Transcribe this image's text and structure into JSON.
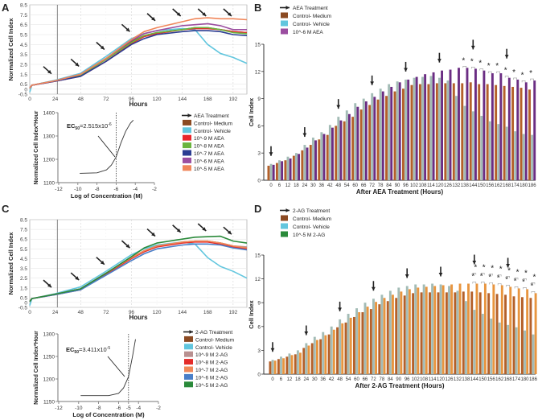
{
  "panel_labels": {
    "A": "A",
    "B": "B",
    "C": "C",
    "D": "D"
  },
  "chart_data": [
    {
      "id": "A",
      "type": "line",
      "xlabel": "Hours",
      "ylabel": "Normalized Cell Index",
      "xlim": [
        0,
        205
      ],
      "ylim": [
        -0.5,
        8.5
      ],
      "xticks": [
        "0",
        "24",
        "48",
        "72",
        "96",
        "120",
        "144",
        "168",
        "192"
      ],
      "yticks": [
        "-0.5",
        "0",
        "0.5",
        "1.5",
        "2.5",
        "3.5",
        "4.5",
        "5.5",
        "6.5",
        "7.5",
        "8.5"
      ],
      "grid": true,
      "treatment_hours": [
        22,
        48,
        72,
        96,
        120,
        144,
        168,
        192
      ],
      "x": [
        0,
        2,
        24,
        48,
        72,
        96,
        108,
        120,
        144,
        156,
        168,
        180,
        192,
        205
      ],
      "series": [
        {
          "name": "Control- Medium",
          "color": "#8b4a22",
          "values": [
            0.1,
            0.4,
            0.85,
            1.4,
            3.0,
            4.8,
            5.4,
            5.7,
            6.0,
            6.2,
            6.2,
            6.0,
            5.8,
            5.7
          ]
        },
        {
          "name": "Control- Vehicle",
          "color": "#62c6de",
          "values": [
            -0.3,
            0.4,
            0.9,
            1.6,
            3.3,
            5.1,
            5.6,
            5.9,
            6.1,
            6.0,
            4.5,
            3.6,
            3.2,
            2.6
          ]
        },
        {
          "name": "10^-9 M AEA",
          "color": "#e8262b",
          "values": [
            0.1,
            0.4,
            0.8,
            1.3,
            2.8,
            4.6,
            5.3,
            5.6,
            6.0,
            6.1,
            6.1,
            6.0,
            5.8,
            5.7
          ]
        },
        {
          "name": "10^-8 M AEA",
          "color": "#6ab43e",
          "values": [
            0.1,
            0.4,
            0.85,
            1.4,
            3.0,
            4.7,
            5.4,
            5.7,
            6.0,
            6.2,
            6.2,
            6.0,
            5.7,
            5.6
          ]
        },
        {
          "name": "10^-7 M AEA",
          "color": "#2b3d92",
          "values": [
            0.1,
            0.4,
            0.8,
            1.3,
            2.8,
            4.5,
            5.1,
            5.5,
            5.8,
            5.9,
            5.9,
            5.8,
            5.5,
            5.4
          ]
        },
        {
          "name": "10^-6 M AEA",
          "color": "#9b4ea0",
          "values": [
            0.1,
            0.4,
            0.85,
            1.5,
            3.1,
            4.9,
            5.6,
            5.9,
            6.4,
            6.5,
            6.6,
            6.4,
            6.0,
            6.0
          ]
        },
        {
          "name": "10^-5 M AEA",
          "color": "#f0865a",
          "values": [
            0.1,
            0.4,
            0.85,
            1.5,
            3.1,
            5.0,
            5.8,
            6.2,
            6.8,
            7.1,
            7.2,
            7.1,
            7.1,
            7.0
          ]
        }
      ],
      "legend": {
        "treatment_label": "AEA Treatment",
        "placement": "right of inset"
      }
    },
    {
      "id": "A-inset",
      "type": "line",
      "xlabel": "Log of Concentration (M)",
      "ylabel": "Normalized Cell Index*Hour",
      "xlim": [
        -12,
        -2
      ],
      "ylim": [
        1100,
        1400
      ],
      "xticks": [
        "-12",
        "-10",
        "-8",
        "-6",
        "-4",
        "-2"
      ],
      "yticks": [
        "1100",
        "1200",
        "1300",
        "1400"
      ],
      "annotation": {
        "ec_label": "EC",
        "ec_sub": "50",
        "ec_value": "=2.515x10",
        "ec_exp": "-6"
      },
      "reference_x": -6,
      "points": [
        [
          -9.8,
          1140
        ],
        [
          -8,
          1142
        ],
        [
          -7,
          1155
        ],
        [
          -6.5,
          1175
        ],
        [
          -6,
          1210
        ],
        [
          -5.5,
          1270
        ],
        [
          -5,
          1320
        ],
        [
          -4.5,
          1355
        ],
        [
          -4.2,
          1368
        ]
      ]
    },
    {
      "id": "B",
      "type": "bar",
      "xlabel": "After AEA Treatment (Hours)",
      "ylabel": "Cell Index",
      "ylim": [
        0,
        15
      ],
      "yticks": [
        "0",
        "3",
        "6",
        "9",
        "12",
        "15"
      ],
      "categories": [
        "0",
        "6",
        "12",
        "18",
        "24",
        "30",
        "36",
        "42",
        "48",
        "54",
        "60",
        "66",
        "72",
        "78",
        "84",
        "90",
        "96",
        "102",
        "108",
        "114",
        "120",
        "126",
        "132",
        "138",
        "144",
        "150",
        "156",
        "162",
        "168",
        "174",
        "180",
        "186"
      ],
      "treatment_label": "AEA Treatment",
      "treatment_hours": [
        0,
        24,
        48,
        72,
        96,
        120,
        144,
        168
      ],
      "significance": [
        {
          "at": 138,
          "count": 1
        },
        {
          "at": 144,
          "count": 1
        },
        {
          "at": 150,
          "count": 1
        },
        {
          "at": 156,
          "count": 1
        },
        {
          "at": 162,
          "count": 1
        },
        {
          "at": 168,
          "count": 1
        },
        {
          "at": 174,
          "count": 1
        },
        {
          "at": 180,
          "count": 1
        },
        {
          "at": 186,
          "count": 1
        }
      ],
      "series": [
        {
          "name": "Control- Medium",
          "color": "#b4602a",
          "legend_color": "#8b4a22",
          "values": [
            1.6,
            1.9,
            2.2,
            2.7,
            3.3,
            3.9,
            4.5,
            5.0,
            6.0,
            6.5,
            7.0,
            7.8,
            8.3,
            8.9,
            9.3,
            9.8,
            10.1,
            10.5,
            10.6,
            10.6,
            10.7,
            10.7,
            10.7,
            10.7,
            10.8,
            10.6,
            10.6,
            10.5,
            10.4,
            10.3,
            10.2,
            10.0
          ]
        },
        {
          "name": "Control- Vehicle",
          "color": "#a3bcb6",
          "legend_color": "#62c6de",
          "values": [
            1.8,
            2.2,
            2.6,
            3.0,
            3.9,
            4.7,
            5.3,
            6.1,
            7.0,
            7.7,
            8.5,
            9.0,
            9.6,
            10.1,
            10.6,
            10.9,
            11.1,
            11.3,
            11.4,
            11.5,
            11.3,
            11.0,
            9.3,
            8.2,
            7.6,
            7.1,
            6.5,
            6.2,
            5.9,
            5.4,
            5.1,
            5.0
          ]
        },
        {
          "name": "10^-6 M AEA",
          "color": "#6b2d83",
          "legend_color": "#9b4ea0",
          "values": [
            1.7,
            2.1,
            2.4,
            2.9,
            3.6,
            4.4,
            5.1,
            5.8,
            6.6,
            7.3,
            8.1,
            8.7,
            9.2,
            9.8,
            10.3,
            10.8,
            11.1,
            11.4,
            11.7,
            11.9,
            12.1,
            12.2,
            12.4,
            12.4,
            12.3,
            12.1,
            11.8,
            11.8,
            11.3,
            11.1,
            10.8,
            11.0
          ]
        }
      ]
    },
    {
      "id": "C",
      "type": "line",
      "xlabel": "Hours",
      "ylabel": "Normalized Cell Index",
      "xlim": [
        0,
        205
      ],
      "ylim": [
        -0.5,
        8.5
      ],
      "xticks": [
        "0",
        "24",
        "48",
        "72",
        "96",
        "120",
        "144",
        "168",
        "192"
      ],
      "yticks": [
        "-0.5",
        "0",
        "0.5",
        "1.5",
        "2.5",
        "3.5",
        "4.5",
        "5.5",
        "6.5",
        "7.5",
        "8.5"
      ],
      "grid": true,
      "treatment_hours": [
        22,
        48,
        72,
        96,
        120,
        144,
        168,
        192
      ],
      "x": [
        0,
        2,
        24,
        48,
        72,
        96,
        108,
        120,
        144,
        156,
        168,
        180,
        192,
        205
      ],
      "series": [
        {
          "name": "Control- Medium",
          "color": "#8b4a22",
          "values": [
            0.1,
            0.4,
            0.85,
            1.4,
            3.0,
            4.6,
            5.3,
            5.8,
            6.2,
            6.3,
            6.3,
            6.1,
            5.8,
            5.6
          ]
        },
        {
          "name": "Control- Vehicle",
          "color": "#62c6de",
          "values": [
            -0.3,
            0.4,
            0.9,
            1.6,
            3.2,
            4.9,
            5.5,
            5.9,
            6.2,
            6.0,
            4.6,
            3.7,
            3.2,
            2.5
          ]
        },
        {
          "name": "10^-9 M 2-AG",
          "color": "#b89090",
          "values": [
            0.1,
            0.4,
            0.85,
            1.4,
            3.0,
            4.6,
            5.3,
            5.8,
            6.2,
            6.3,
            6.3,
            6.1,
            5.8,
            5.7
          ]
        },
        {
          "name": "10^-8 M 2-AG",
          "color": "#e42c2a",
          "values": [
            0.1,
            0.4,
            0.8,
            1.3,
            2.9,
            4.5,
            5.2,
            5.7,
            6.1,
            6.2,
            6.2,
            6.0,
            5.7,
            5.5
          ]
        },
        {
          "name": "10^-7 M 2-AG",
          "color": "#f08858",
          "values": [
            0.1,
            0.4,
            0.85,
            1.4,
            3.0,
            4.6,
            5.3,
            5.8,
            6.2,
            6.3,
            6.3,
            6.1,
            5.8,
            5.6
          ]
        },
        {
          "name": "10^-6 M 2-AG",
          "color": "#4a7fc8",
          "values": [
            0.1,
            0.4,
            0.8,
            1.3,
            2.8,
            4.3,
            5.0,
            5.5,
            5.9,
            6.0,
            6.0,
            5.9,
            5.6,
            5.4
          ]
        },
        {
          "name": "10^-5 M 2-AG",
          "color": "#2a8a3a",
          "values": [
            0.1,
            0.4,
            0.85,
            1.4,
            3.0,
            4.7,
            5.6,
            6.1,
            6.5,
            6.7,
            6.75,
            6.8,
            6.3,
            6.1
          ]
        }
      ],
      "legend": {
        "treatment_label": "2-AG Treatment",
        "placement": "right of inset"
      }
    },
    {
      "id": "C-inset",
      "type": "line",
      "xlabel": "Log of Concentration (M)",
      "ylabel": "Normalized Cell Index*Hour",
      "xlim": [
        -12,
        -2
      ],
      "ylim": [
        1150,
        1300
      ],
      "xticks": [
        "-12",
        "-10",
        "-8",
        "-6",
        "-5",
        "-4",
        "-2"
      ],
      "yticks": [
        "1150",
        "1200",
        "1250",
        "1300"
      ],
      "annotation": {
        "ec_label": "EC",
        "ec_sub": "50",
        "ec_value": "=3.411x10",
        "ec_exp": "-5"
      },
      "reference_x": -5,
      "points": [
        [
          -9.8,
          1163
        ],
        [
          -7,
          1163
        ],
        [
          -6,
          1168
        ],
        [
          -5.5,
          1180
        ],
        [
          -5,
          1205
        ],
        [
          -4.6,
          1250
        ],
        [
          -4.3,
          1288
        ]
      ]
    },
    {
      "id": "D",
      "type": "bar",
      "xlabel": "After 2-AG Treatment (Hours)",
      "ylabel": "Cell Index",
      "ylim": [
        0,
        15
      ],
      "yticks": [
        "0",
        "3",
        "6",
        "9",
        "12",
        "15"
      ],
      "categories": [
        "0",
        "6",
        "12",
        "18",
        "24",
        "30",
        "36",
        "42",
        "48",
        "54",
        "60",
        "66",
        "72",
        "78",
        "84",
        "90",
        "96",
        "102",
        "108",
        "114",
        "120",
        "126",
        "132",
        "138",
        "144",
        "150",
        "156",
        "162",
        "168",
        "174",
        "180",
        "186"
      ],
      "treatment_label": "2-AG Treatment",
      "treatment_hours": [
        0,
        24,
        48,
        72,
        96,
        120,
        144,
        168
      ],
      "significance": [
        {
          "at": 144,
          "count": 2
        },
        {
          "at": 150,
          "count": 2
        },
        {
          "at": 156,
          "count": 2
        },
        {
          "at": 162,
          "count": 2
        },
        {
          "at": 168,
          "count": 2
        },
        {
          "at": 174,
          "count": 2
        },
        {
          "at": 180,
          "count": 2
        },
        {
          "at": 186,
          "count": 2
        }
      ],
      "series": [
        {
          "name": "Control- Medium",
          "color": "#b4602a",
          "legend_color": "#8b4a22",
          "values": [
            1.6,
            1.9,
            2.2,
            2.5,
            3.3,
            3.9,
            4.4,
            5.0,
            5.9,
            6.5,
            7.2,
            7.8,
            8.2,
            8.8,
            9.2,
            9.6,
            9.9,
            10.2,
            10.3,
            10.3,
            10.3,
            10.3,
            10.3,
            10.4,
            10.4,
            10.3,
            10.2,
            10.1,
            10.0,
            9.8,
            9.7,
            9.6
          ]
        },
        {
          "name": "Control- Vehicle",
          "color": "#a3bcb6",
          "legend_color": "#62c6de",
          "values": [
            1.8,
            2.2,
            2.6,
            3.0,
            3.9,
            4.7,
            5.3,
            6.0,
            6.9,
            7.6,
            8.3,
            9.0,
            9.5,
            10.0,
            10.5,
            10.9,
            11.1,
            11.3,
            11.3,
            11.4,
            11.3,
            11.1,
            10.5,
            9.2,
            8.1,
            7.6,
            7.0,
            6.5,
            6.2,
            5.9,
            5.5,
            5.0
          ]
        },
        {
          "name": "10^-5 M 2-AG",
          "color": "#e8953f",
          "legend_color": "#2a8a3a",
          "values": [
            1.7,
            2.0,
            2.4,
            2.7,
            3.6,
            4.3,
            4.9,
            5.6,
            6.4,
            7.1,
            7.8,
            8.5,
            9.1,
            9.6,
            10.0,
            10.4,
            10.7,
            10.9,
            11.0,
            11.1,
            11.2,
            11.3,
            11.4,
            11.4,
            11.4,
            11.4,
            11.3,
            11.2,
            11.0,
            10.8,
            10.7,
            10.2
          ]
        }
      ]
    }
  ]
}
